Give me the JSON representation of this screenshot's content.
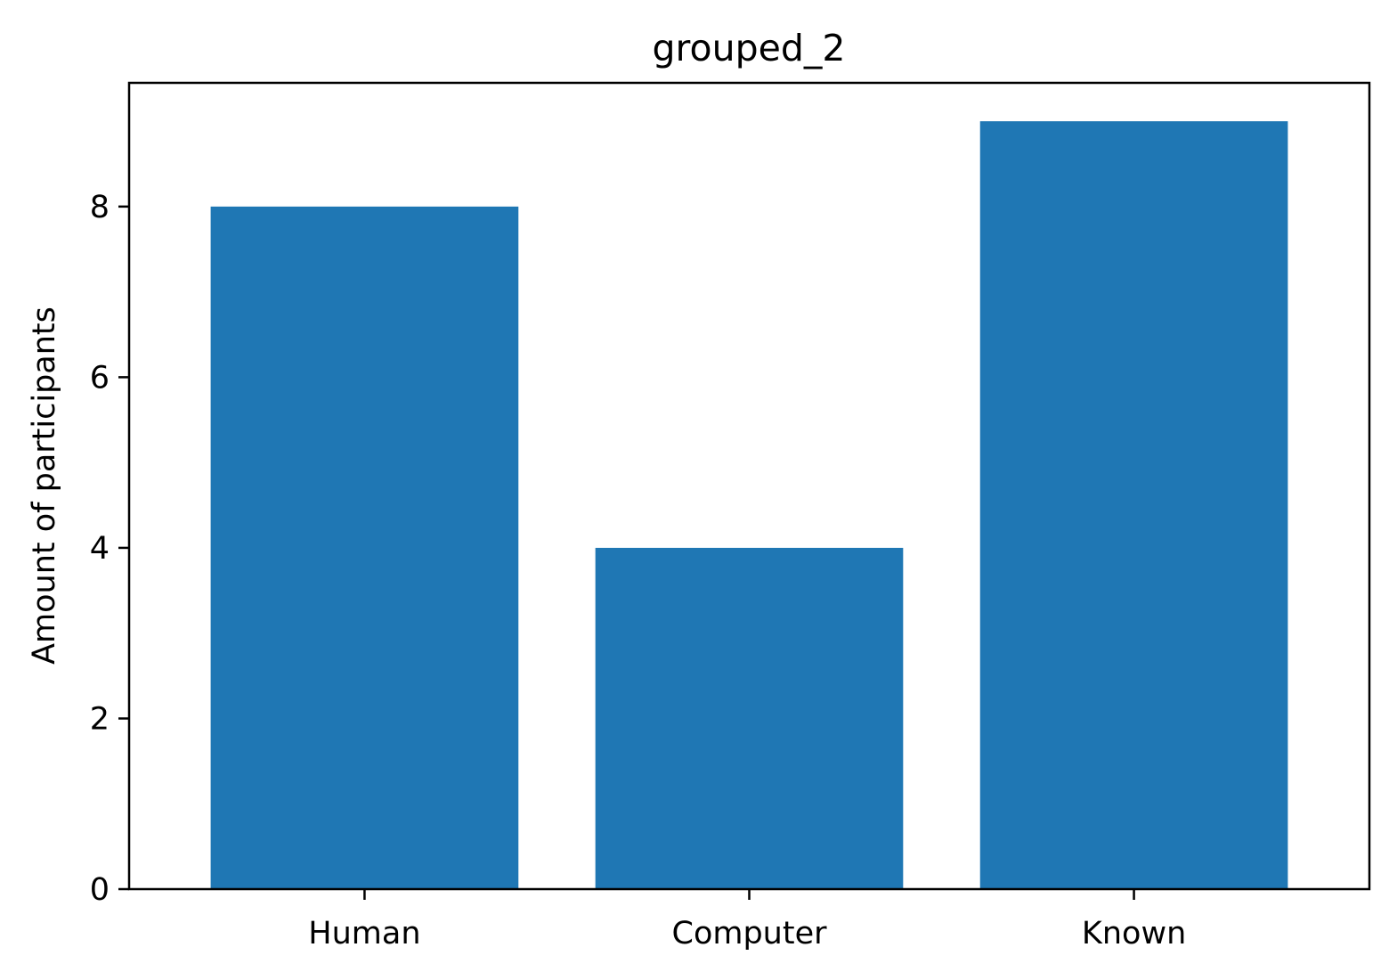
{
  "chart_data": {
    "type": "bar",
    "title": "grouped_2",
    "xlabel": "",
    "ylabel": "Amount of participants",
    "categories": [
      "Human",
      "Computer",
      "Known"
    ],
    "values": [
      8,
      4,
      9
    ],
    "ylim": [
      0,
      9.45
    ],
    "yticks": [
      0,
      2,
      4,
      6,
      8
    ],
    "bar_color": "#1f77b4",
    "grid": false,
    "legend": "none"
  }
}
